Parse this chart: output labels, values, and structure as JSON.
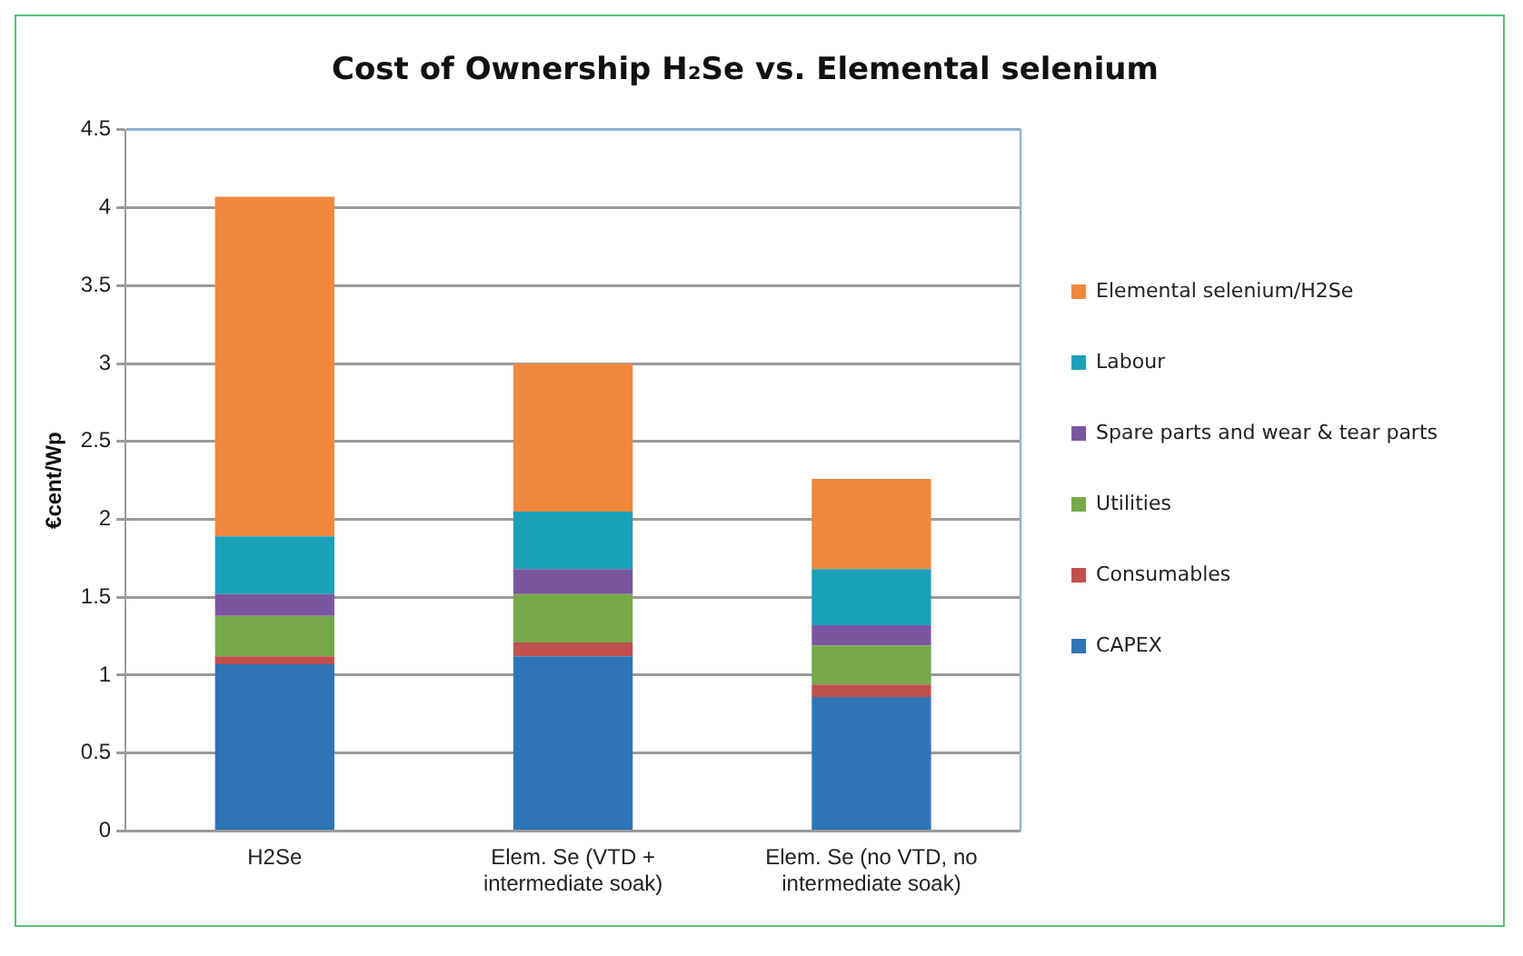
{
  "chart_data": {
    "type": "bar",
    "title": "Cost of Ownership H₂Se vs. Elemental selenium",
    "ylabel": "€cent/Wp",
    "categories": [
      "H2Se",
      "Elem. Se (VTD + intermediate soak)",
      "Elem. Se (no VTD, no intermediate soak)"
    ],
    "stacked": true,
    "series": [
      {
        "name": "CAPEX",
        "color": "#2e75b6",
        "values": [
          1.07,
          1.12,
          0.86
        ]
      },
      {
        "name": "Consumables",
        "color": "#c0504d",
        "values": [
          0.05,
          0.09,
          0.08
        ]
      },
      {
        "name": "Utilities",
        "color": "#77a84a",
        "values": [
          0.26,
          0.31,
          0.25
        ]
      },
      {
        "name": "Spare parts and wear & tear parts",
        "color": "#7b56a0",
        "values": [
          0.14,
          0.16,
          0.13
        ]
      },
      {
        "name": "Labour",
        "color": "#1aa1b8",
        "values": [
          0.37,
          0.37,
          0.36
        ]
      },
      {
        "name": "Elemental selenium/H2Se",
        "color": "#f0883e",
        "values": [
          2.18,
          0.95,
          0.58
        ]
      }
    ],
    "ylim": [
      0,
      4.5
    ],
    "yticks": [
      0,
      0.5,
      1,
      1.5,
      2,
      2.5,
      3,
      3.5,
      4,
      4.5
    ],
    "grid": "y",
    "legend": "right"
  }
}
